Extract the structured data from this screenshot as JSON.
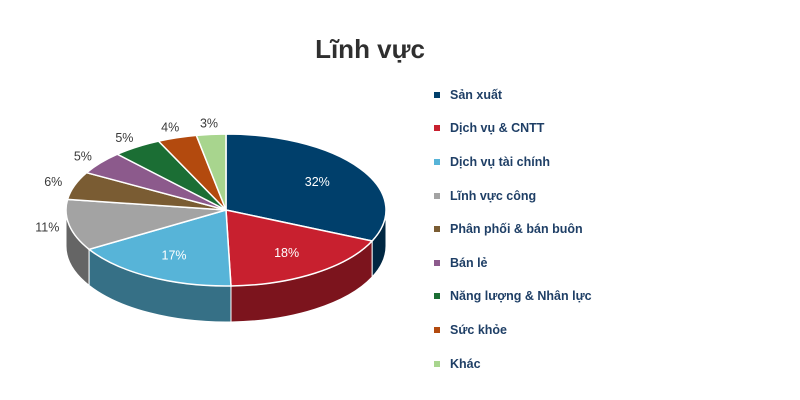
{
  "chart_data": {
    "type": "pie",
    "title": "Lĩnh vực",
    "legend_position": "right",
    "slices": [
      {
        "label": "Sản xuất",
        "value": 32,
        "display": "32%",
        "color": "#003f6b"
      },
      {
        "label": "Dịch vụ & CNTT",
        "value": 18,
        "display": "18%",
        "color": "#c8202f"
      },
      {
        "label": "Dịch vụ tài chính",
        "value": 17,
        "display": "17%",
        "color": "#57b4d8"
      },
      {
        "label": "Lĩnh vực công",
        "value": 11,
        "display": "11%",
        "color": "#a3a3a3"
      },
      {
        "label": "Phân phối & bán buôn",
        "value": 6,
        "display": "6%",
        "color": "#7a5c33"
      },
      {
        "label": "Bán lẻ",
        "value": 5,
        "display": "5%",
        "color": "#8c5a8c"
      },
      {
        "label": "Năng lượng & Nhân lực",
        "value": 5,
        "display": "5%",
        "color": "#1b6e34"
      },
      {
        "label": "Sức khỏe",
        "value": 4,
        "display": "4%",
        "color": "#b34a0e"
      },
      {
        "label": "Khác",
        "value": 3,
        "display": "3%",
        "color": "#a8d58e"
      }
    ]
  }
}
